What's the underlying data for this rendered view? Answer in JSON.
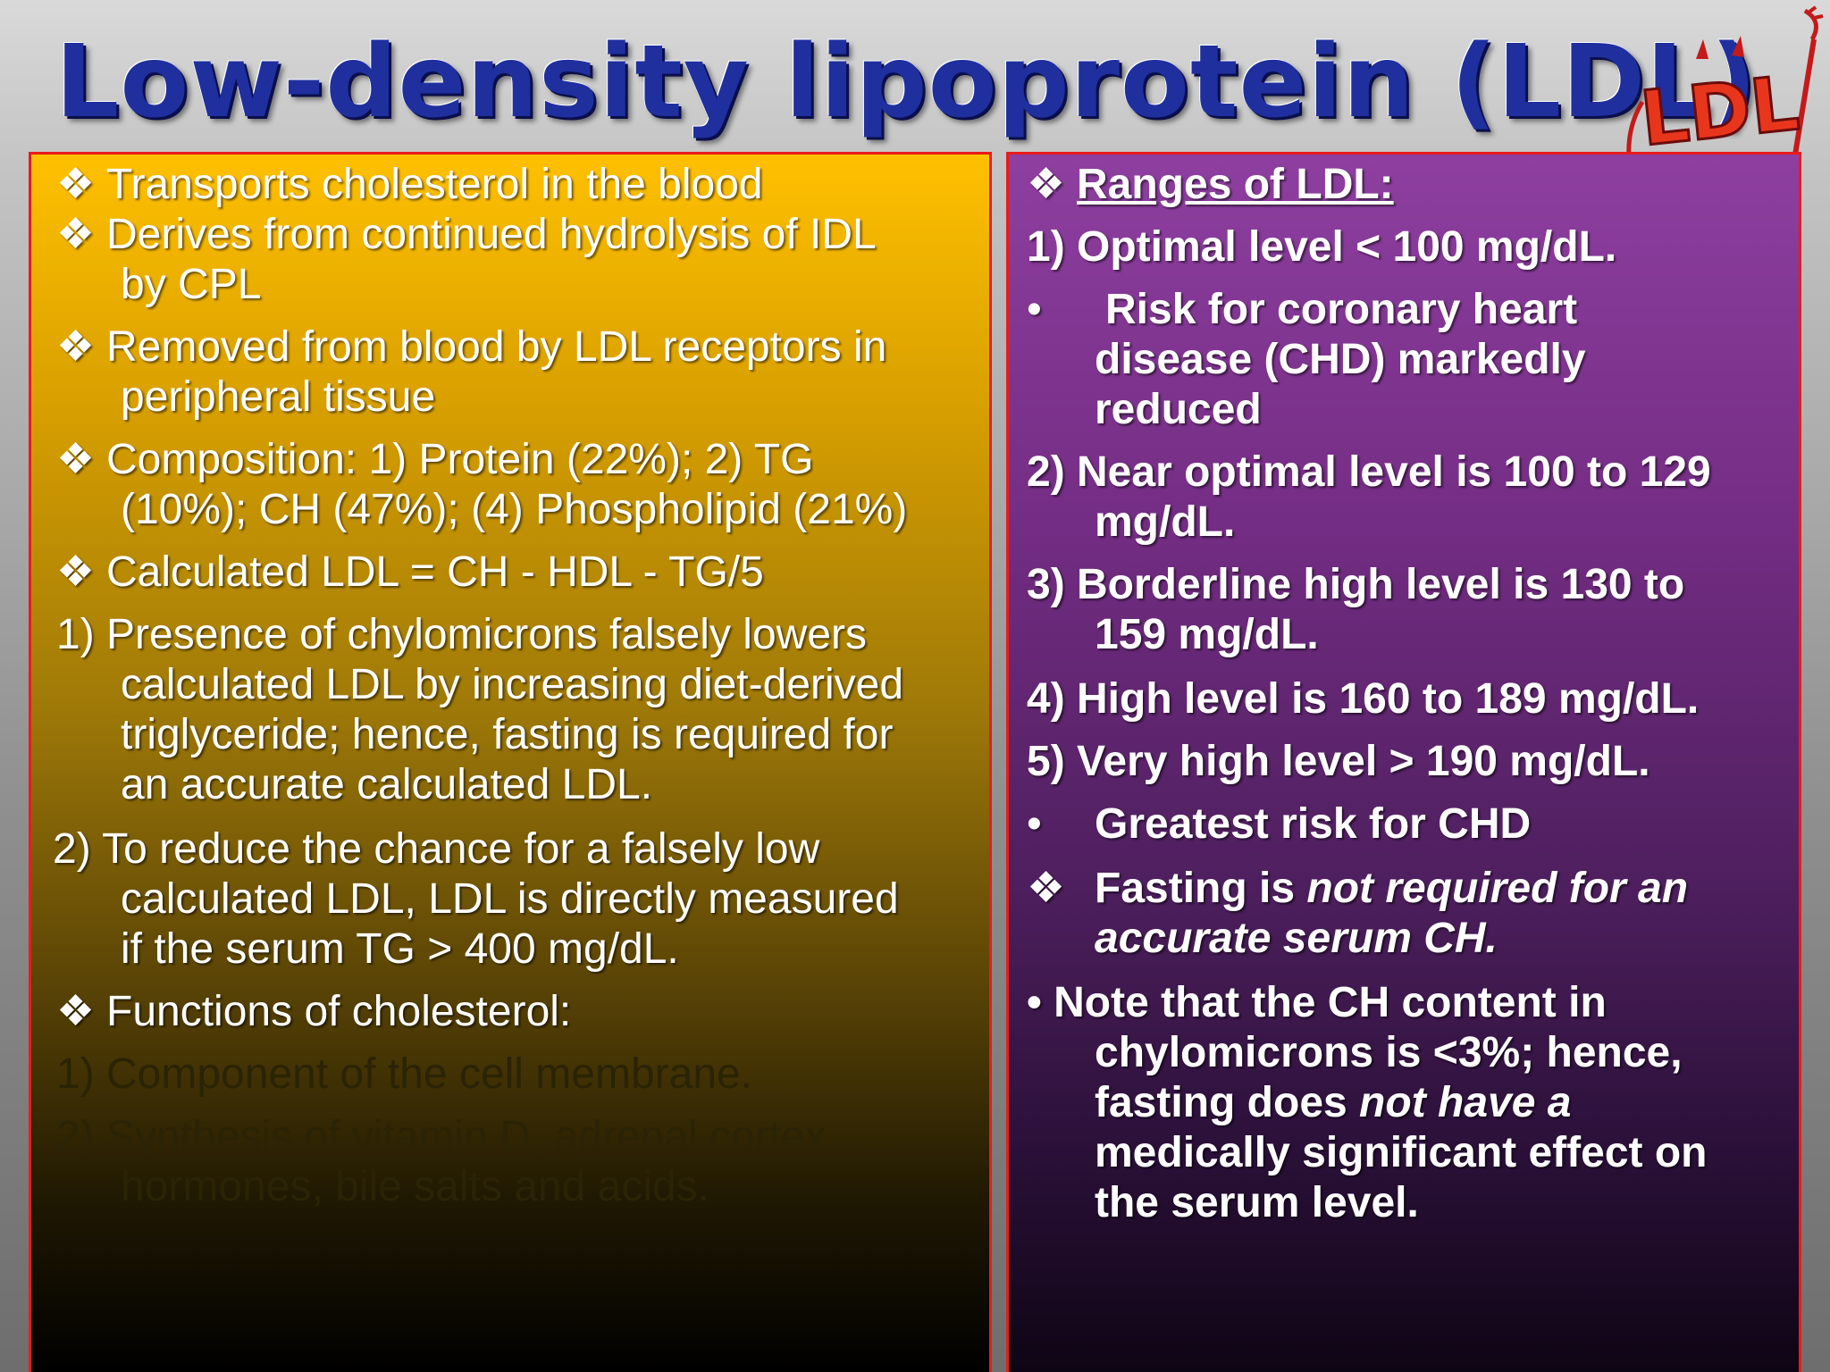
{
  "title": "Low-density lipoprotein (LDL)",
  "logo": {
    "icon": "ldl-devil-mascot-icon",
    "text": "LDL"
  },
  "left": {
    "bullet_glyph": "❖",
    "lines": [
      "Transports cholesterol in the blood",
      "Derives from continued hydrolysis of IDL",
      "by CPL",
      "Removed from blood by LDL receptors in",
      "peripheral tissue",
      "Composition: 1) Protein (22%); 2) TG",
      "(10%); CH (47%); (4) Phospholipid (21%)",
      "Calculated LDL = CH - HDL - TG/5",
      "1) Presence of chylomicrons falsely lowers",
      "calculated LDL by increasing diet-derived",
      "triglyceride; hence, fasting is required for",
      "an accurate calculated LDL.",
      "2) To reduce the chance for a falsely low",
      "calculated LDL, LDL is directly measured",
      "if the serum TG > 400 mg/dL.",
      "Functions of cholesterol:",
      "1) Component of the cell membrane.",
      "2) Synthesis of vitamin D, adrenal cortex",
      "hormones, bile salts and acids."
    ]
  },
  "right": {
    "bullet_glyph": "❖",
    "dot_glyph": "•",
    "heading": "Ranges of LDL:",
    "lines": [
      "1) Optimal level < 100 mg/dL.",
      "Risk for coronary heart",
      "disease (CHD) markedly",
      "reduced",
      "2) Near optimal level is 100 to 129",
      "mg/dL.",
      "3) Borderline high level is 130 to",
      "159 mg/dL.",
      "4) High level is 160 to 189 mg/dL.",
      "5) Very high level > 190 mg/dL.",
      "Greatest risk for CHD"
    ],
    "fasting_prefix": "Fasting is ",
    "fasting_italic_1": "not required for an",
    "fasting_italic_2": "accurate serum CH.",
    "note_line1": "• Note that the CH content in",
    "note_line2": "chylomicrons is <3%; hence,",
    "note_line3_prefix": "fasting does ",
    "note_line3_italic": "not have a",
    "note_line4": "medically significant effect on",
    "note_line5": "the serum level."
  }
}
